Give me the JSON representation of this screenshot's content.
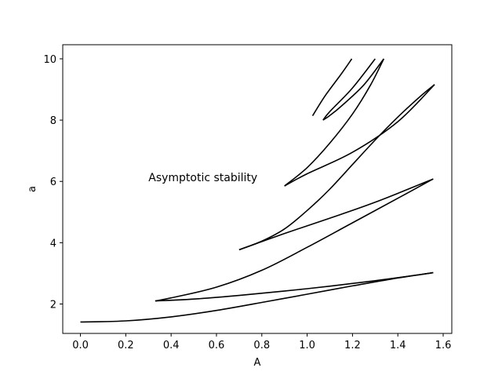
{
  "chart_data": {
    "type": "line",
    "xlabel": "A",
    "ylabel": "a",
    "xlim": [
      -0.078,
      1.638
    ],
    "ylim": [
      1.04,
      10.46
    ],
    "xticks": [
      "0.0",
      "0.2",
      "0.4",
      "0.6",
      "0.8",
      "1.0",
      "1.2",
      "1.4",
      "1.6"
    ],
    "yticks": [
      "2",
      "4",
      "6",
      "8",
      "10"
    ],
    "grid": false,
    "line_color": "#000000",
    "annotations": [
      {
        "text": "Asymptotic stability",
        "x": 0.3,
        "y": 6.0
      }
    ],
    "series": [
      {
        "x": [
          0.0,
          0.2,
          0.4,
          0.6,
          0.8,
          1.0,
          1.2,
          1.4,
          1.556
        ],
        "y": [
          1.414,
          1.45,
          1.58,
          1.79,
          2.05,
          2.32,
          2.59,
          2.85,
          3.02
        ]
      },
      {
        "x": [
          1.556,
          1.3,
          1.0,
          0.7,
          0.5,
          0.33
        ],
        "y": [
          3.02,
          2.76,
          2.5,
          2.28,
          2.16,
          2.1
        ]
      },
      {
        "x": [
          0.33,
          0.4,
          0.6,
          0.8,
          1.0,
          1.2,
          1.4,
          1.556
        ],
        "y": [
          2.1,
          2.2,
          2.55,
          3.1,
          3.85,
          4.65,
          5.45,
          6.08
        ]
      },
      {
        "x": [
          1.556,
          1.3,
          1.1,
          0.9,
          0.7
        ],
        "y": [
          6.08,
          5.32,
          4.8,
          4.3,
          3.77
        ]
      },
      {
        "x": [
          0.7,
          0.8,
          0.9,
          1.0,
          1.1,
          1.2,
          1.3,
          1.4,
          1.5,
          1.562
        ],
        "y": [
          3.77,
          4.05,
          4.45,
          5.05,
          5.75,
          6.55,
          7.35,
          8.1,
          8.78,
          9.16
        ]
      },
      {
        "x": [
          1.562,
          1.4,
          1.2,
          1.0,
          0.9
        ],
        "y": [
          9.16,
          7.95,
          6.95,
          6.25,
          5.85
        ]
      },
      {
        "x": [
          0.9,
          1.0,
          1.1,
          1.2,
          1.28,
          1.338
        ],
        "y": [
          5.85,
          6.45,
          7.25,
          8.2,
          9.15,
          10.0
        ]
      },
      {
        "x": [
          1.338,
          1.25,
          1.15,
          1.1,
          1.07
        ],
        "y": [
          10.0,
          9.15,
          8.45,
          8.15,
          8.0
        ]
      },
      {
        "x": [
          1.07,
          1.1,
          1.2,
          1.3
        ],
        "y": [
          8.0,
          8.28,
          9.05,
          10.0
        ]
      },
      {
        "x": [
          1.024,
          1.08,
          1.15,
          1.197
        ],
        "y": [
          8.14,
          8.8,
          9.5,
          10.0
        ]
      }
    ]
  }
}
